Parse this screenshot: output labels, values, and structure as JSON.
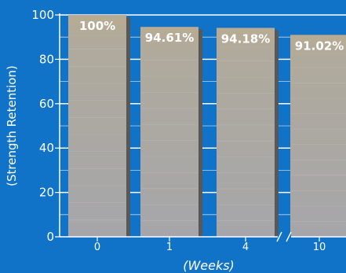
{
  "chart_data": {
    "type": "bar",
    "categories": [
      "0",
      "1",
      "4",
      "10"
    ],
    "values": [
      100,
      94.61,
      94.18,
      91.02
    ],
    "data_labels": [
      "100%",
      "94.61%",
      "94.18%",
      "91.02%"
    ],
    "title": "",
    "xlabel": "(Weeks)",
    "ylabel": "(Strength Retention)",
    "ylim": [
      0,
      100
    ],
    "yticks": [
      0,
      20,
      40,
      60,
      80,
      100
    ],
    "grid": true,
    "axis_break_between": [
      "4",
      "10"
    ],
    "colors": {
      "background": "#1173c7",
      "bar": "#a8a8a8",
      "bar_shadow": "#585858",
      "grid": "#ffffff"
    }
  }
}
